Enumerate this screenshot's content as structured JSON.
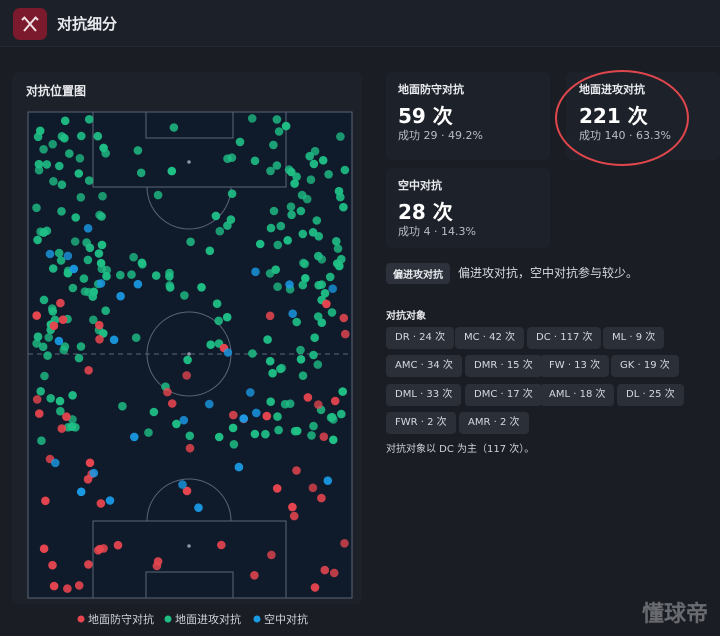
{
  "header": {
    "title": "对抗细分"
  },
  "map": {
    "title": "对抗位置图",
    "legend": [
      "地面防守对抗",
      "地面进攻对抗",
      "空中对抗"
    ]
  },
  "cards": [
    {
      "label": "地面防守对抗",
      "value": "59 次",
      "sub": "成功 29 · 49.2%"
    },
    {
      "label": "地面进攻对抗",
      "value": "221 次",
      "sub": "成功 140 · 63.3%"
    },
    {
      "label": "空中对抗",
      "value": "28 次",
      "sub": "成功 4 · 14.3%"
    }
  ],
  "summary": {
    "tag": "偏进攻对抗",
    "text": "偏进攻对抗，空中对抗参与较少。"
  },
  "opponents": {
    "title": "对抗对象",
    "chips": [
      "DR · 24 次",
      "MC · 42 次",
      "DC · 117 次",
      "ML · 9 次",
      "AMC · 34 次",
      "DMR · 15 次",
      "FW · 13 次",
      "GK · 19 次",
      "DML · 33 次",
      "DMC · 17 次",
      "AML · 18 次",
      "DL · 25 次",
      "FWR · 2 次",
      "AMR · 2 次"
    ],
    "note": "对抗对象以 DC 为主（117 次）。"
  },
  "watermark": "懂球帝"
}
